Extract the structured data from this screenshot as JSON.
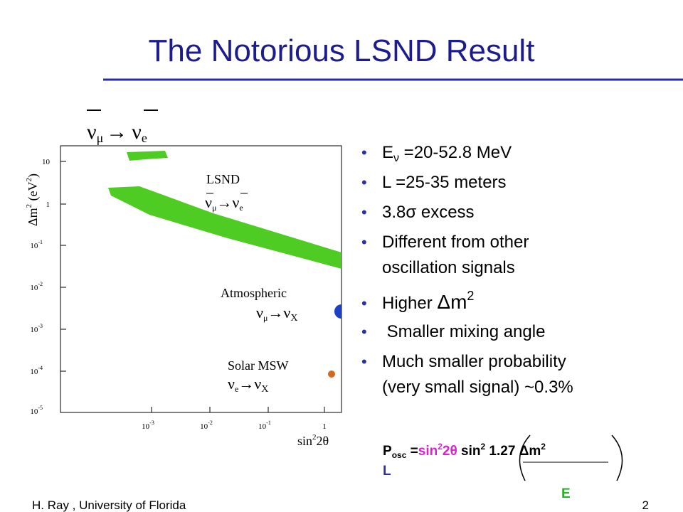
{
  "title": "The Notorious LSND Result",
  "plot": {
    "heading": {
      "parts": [
        "ν",
        "μ",
        "→",
        "ν",
        "e"
      ]
    },
    "y_label": {
      "parts": [
        "Δm",
        "2",
        " (eV",
        "2",
        ")"
      ]
    },
    "y_ticks": [
      {
        "base": "10"
      },
      {
        "base": "1"
      },
      {
        "base": "10",
        "exp": "-1"
      },
      {
        "base": "10",
        "exp": "-2"
      },
      {
        "base": "10",
        "exp": "-3"
      },
      {
        "base": "10",
        "exp": "-4"
      },
      {
        "base": "10",
        "exp": "-5"
      }
    ],
    "x_ticks": [
      {
        "base": "10",
        "exp": "-3"
      },
      {
        "base": "10",
        "exp": "-2"
      },
      {
        "base": "10",
        "exp": "-1"
      },
      {
        "base": "1"
      }
    ],
    "x_label": {
      "parts": [
        "sin",
        "2",
        "2θ"
      ]
    },
    "annotations": [
      {
        "label": "LSND",
        "reaction": [
          "ν",
          "μ",
          "→ν",
          "e"
        ]
      },
      {
        "label": "Atmospheric",
        "reaction": [
          "ν",
          "μ",
          "→ν",
          "X"
        ]
      },
      {
        "label": "Solar MSW",
        "reaction": [
          "ν",
          "e",
          "→ν",
          "X"
        ]
      }
    ]
  },
  "bullets": [
    {
      "parts": [
        "E",
        "ν",
        " =20-52.8 MeV"
      ]
    },
    {
      "parts": [
        "L  =25-35 meters"
      ]
    },
    {
      "parts": [
        "3.8σ excess"
      ]
    },
    {
      "lines": [
        "Different from other",
        "oscillation signals"
      ]
    },
    {
      "parts": [
        "Higher ",
        "Δm",
        "2"
      ]
    },
    {
      "parts": [
        " Smaller mixing angle"
      ]
    },
    {
      "lines": [
        "Much smaller probability",
        "(very small signal) ~0.3%"
      ]
    }
  ],
  "formula": {
    "parts": [
      "P",
      "osc",
      " =",
      "sin",
      "2",
      "2θ",
      " sin",
      "2",
      " 1.27 ",
      "Δm",
      "2"
    ],
    "numerator_tail": "L",
    "denominator": "E"
  },
  "footer": {
    "author": "H. Ray , University of Florida",
    "page": "2"
  }
}
